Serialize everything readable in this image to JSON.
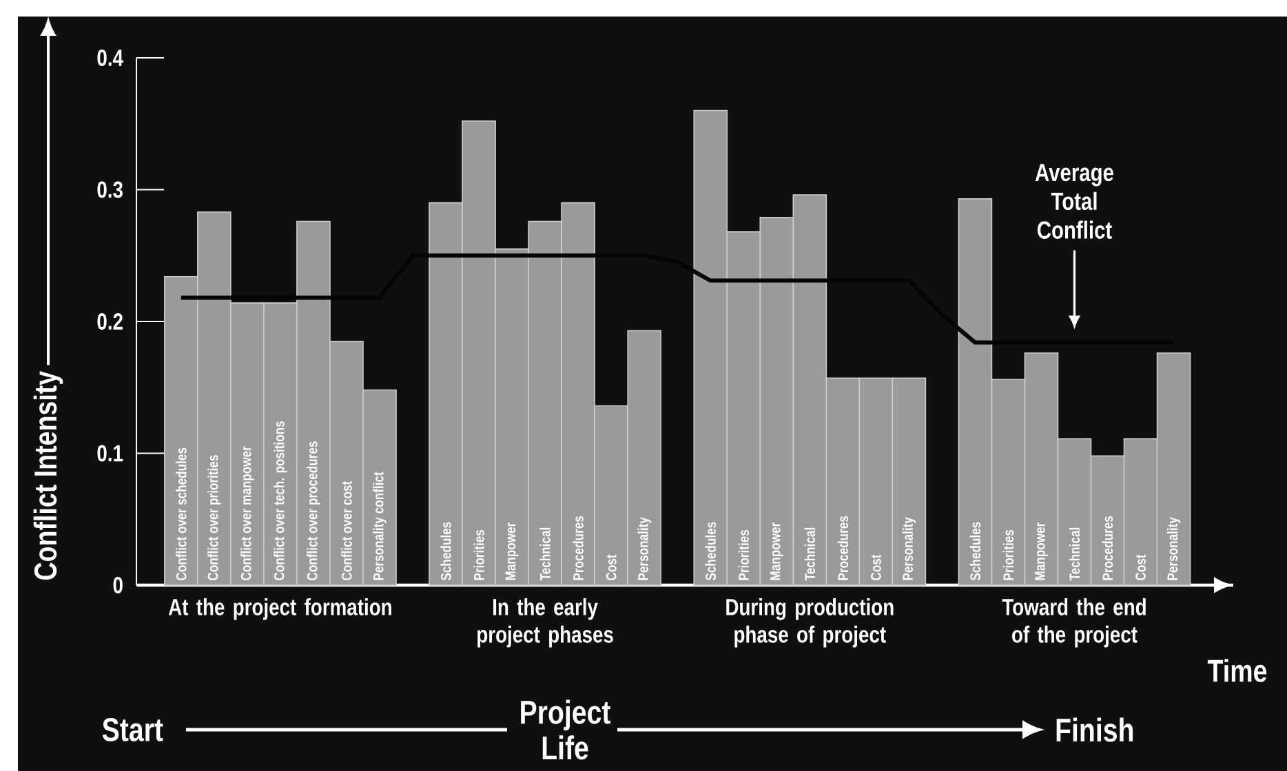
{
  "chart_data": {
    "type": "bar",
    "ylabel": "Conflict Intensity",
    "xlabel": "Time",
    "categories": [
      "Conflict over schedules",
      "Conflict over priorities",
      "Conflict over manpower",
      "Conflict over tech. positions",
      "Conflict over procedures",
      "Conflict over cost",
      "Personality conflict",
      null,
      "Schedules",
      "Priorities",
      "Manpower",
      "Technical",
      "Procedures",
      "Cost",
      "Personality",
      null,
      "Schedules",
      "Priorities",
      "Manpower",
      "Technical",
      "Procedures",
      "Cost",
      "Personality",
      null,
      "Schedules",
      "Priorities",
      "Manpower",
      "Technical",
      "Procedures",
      "Cost",
      "Personality"
    ],
    "series": [
      {
        "color": "#9a9a9a",
        "values": [
          0.234,
          0.283,
          0.214,
          0.214,
          0.276,
          0.185,
          0.148,
          null,
          0.29,
          0.352,
          0.255,
          0.276,
          0.29,
          0.136,
          0.193,
          null,
          0.36,
          0.268,
          0.279,
          0.296,
          0.157,
          0.157,
          0.157,
          null,
          0.293,
          0.156,
          0.176,
          0.111,
          0.098,
          0.111,
          0.176
        ]
      },
      {
        "type": "line",
        "name": "Average Total Conflict",
        "color": "#050505",
        "values": [
          0.218,
          0.218,
          0.218,
          0.218,
          0.218,
          0.218,
          0.218,
          0.25,
          0.25,
          0.25,
          0.25,
          0.25,
          0.25,
          0.25,
          0.25,
          0.245,
          0.231,
          0.231,
          0.231,
          0.231,
          0.231,
          0.231,
          0.231,
          0.205,
          0.184,
          0.184,
          0.184,
          0.184,
          0.184,
          0.184,
          0.184
        ]
      }
    ],
    "ylim": [
      0,
      0.4
    ],
    "yticks": [
      0,
      0.1,
      0.2,
      0.3,
      0.4
    ],
    "annotations": [
      "At the project formation",
      "In the early project phases",
      "During production phase of project",
      "Toward the end of the project",
      "Start",
      "Project Life",
      "Finish"
    ]
  }
}
